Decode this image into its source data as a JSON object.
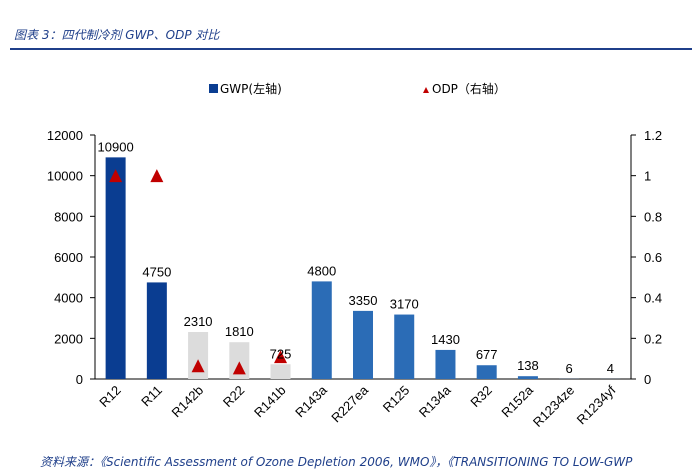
{
  "figure": {
    "title": "图表 3：四代制冷剂 GWP、ODP 对比",
    "source": "资料来源：《Scientific Assessment of Ozone Depletion 2006, WMO》，《TRANSITIONING TO LOW-GWP"
  },
  "colors": {
    "gen1": "#0a3d91",
    "gen2": "#dcdcdc",
    "gen3": "#2b6cb6",
    "marker": "#c00000",
    "rule": "#1f3f8a"
  },
  "chart_data": {
    "type": "bar",
    "categories": [
      "R12",
      "R11",
      "R142b",
      "R22",
      "R141b",
      "R143a",
      "R227ea",
      "R125",
      "R134a",
      "R32",
      "R152a",
      "R1234ze",
      "R1234yf"
    ],
    "series": [
      {
        "name": "GWP(左轴)",
        "axis": "left",
        "values": [
          10900,
          4750,
          2310,
          1810,
          725,
          4800,
          3350,
          3170,
          1430,
          677,
          138,
          6,
          4
        ],
        "labels": [
          "10900",
          "4750",
          "2310",
          "1810",
          "725",
          "4800",
          "3350",
          "3170",
          "1430",
          "677",
          "138",
          "6",
          "4"
        ],
        "bar_colors": [
          "gen1",
          "gen1",
          "gen2",
          "gen2",
          "gen2",
          "gen3",
          "gen3",
          "gen3",
          "gen3",
          "gen3",
          "gen3",
          "gen3",
          "gen3"
        ]
      },
      {
        "name": "ODP（右轴）",
        "axis": "right",
        "type": "scatter",
        "marker": "triangle",
        "values": [
          1.0,
          1.0,
          0.065,
          0.055,
          0.11,
          null,
          null,
          null,
          null,
          null,
          null,
          null,
          null
        ]
      }
    ],
    "y_left": {
      "ylim": [
        0,
        12000
      ],
      "ticks": [
        "0",
        "2000",
        "4000",
        "6000",
        "8000",
        "10000",
        "12000"
      ]
    },
    "y_right": {
      "ylim": [
        0,
        1.2
      ],
      "ticks": [
        "0",
        "0.2",
        "0.4",
        "0.6",
        "0.8",
        "1",
        "1.2"
      ]
    },
    "legend_position": "top-center",
    "grid": false
  }
}
